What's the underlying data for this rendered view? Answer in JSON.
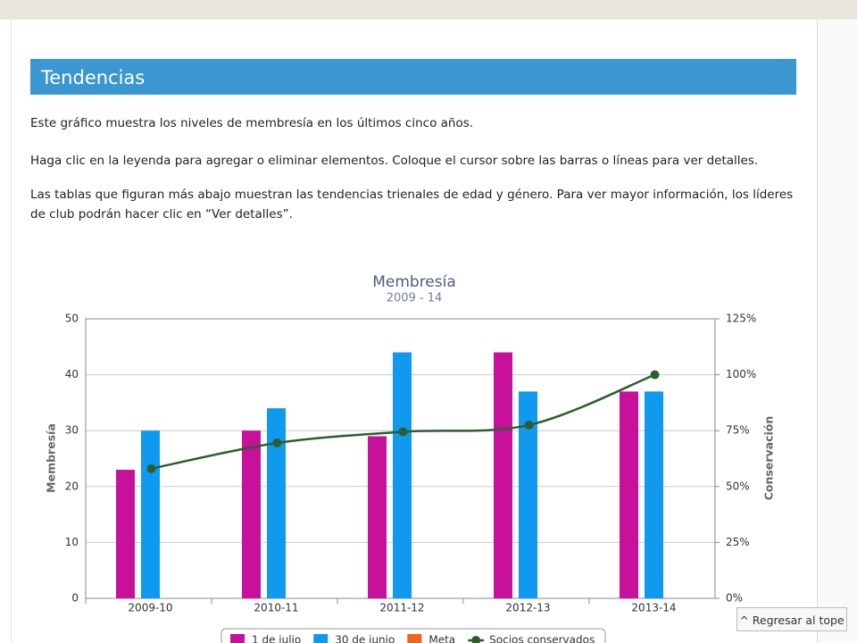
{
  "header": {
    "title": "Tendencias"
  },
  "paragraphs": [
    "Este gráfico muestra los niveles de membresía en los últimos cinco años.",
    "Haga clic en la leyenda para agregar o eliminar elementos. Coloque el cursor sobre las barras o líneas para ver detalles.",
    "Las tablas que figuran más abajo muestran las tendencias trienales de edad y género. Para ver mayor información, los líderes de club podrán hacer clic en “Ver detalles”."
  ],
  "chart_data": {
    "type": "bar",
    "title": "Membresía",
    "subtitle": "2009 - 14",
    "y_label": "Membresía",
    "y2_label": "Conservación",
    "categories": [
      "2009-10",
      "2010-11",
      "2011-12",
      "2012-13",
      "2013-14"
    ],
    "series": [
      {
        "name": "1 de julio",
        "color": "#c8119a",
        "values": [
          23,
          30,
          29,
          44,
          37
        ]
      },
      {
        "name": "30 de junio",
        "color": "#0f9aef",
        "values": [
          30,
          34,
          44,
          37,
          37
        ]
      },
      {
        "name": "Meta",
        "color": "#f0641e",
        "values": [
          null,
          null,
          null,
          null,
          null
        ]
      },
      {
        "name": "Socios conservados",
        "color": "#2e5e2e",
        "type": "line",
        "axis": "y2",
        "values": [
          58,
          69.5,
          74.5,
          77.5,
          100
        ]
      }
    ],
    "ylim": [
      0,
      50
    ],
    "yticks": [
      0,
      10,
      20,
      30,
      40,
      50
    ],
    "y2lim": [
      0,
      125
    ],
    "y2ticks": [
      {
        "value": 0,
        "label": "0%"
      },
      {
        "value": 25,
        "label": "25%"
      },
      {
        "value": 50,
        "label": "50%"
      },
      {
        "value": 75,
        "label": "75%"
      },
      {
        "value": 100,
        "label": "100%"
      },
      {
        "value": 125,
        "label": "125%"
      }
    ],
    "grid": true,
    "legend": "bottom"
  },
  "button": {
    "label": "^ Regresar al tope"
  }
}
